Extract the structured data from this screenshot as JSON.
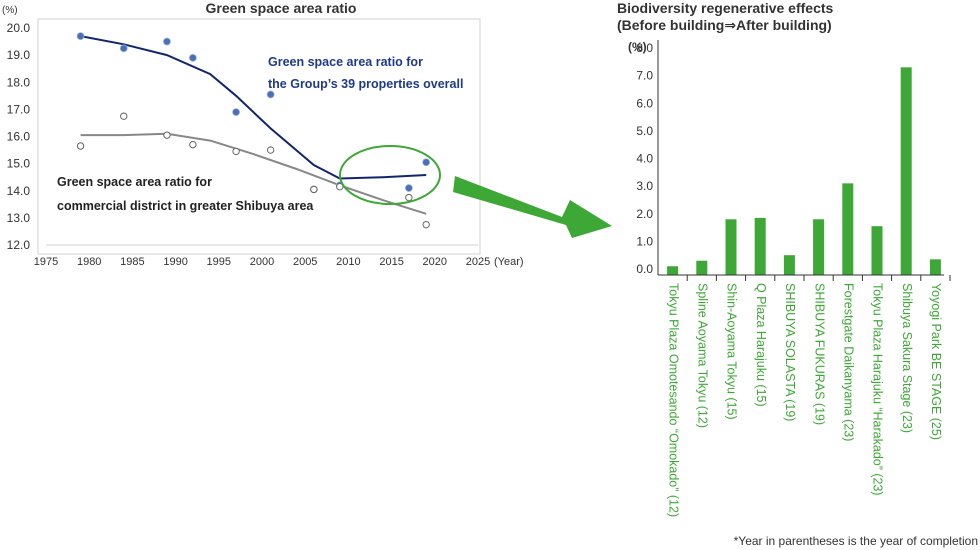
{
  "chart_data": [
    {
      "type": "scatter",
      "title": "Green space area ratio",
      "ylabel": "(%)",
      "xlabel": "(Year)",
      "xlim": [
        1975,
        2025
      ],
      "ylim": [
        12.0,
        20.0
      ],
      "x_ticks": [
        "1975",
        "1980",
        "1985",
        "1990",
        "1995",
        "2000",
        "2005",
        "2010",
        "2015",
        "2020",
        "2025"
      ],
      "y_ticks": [
        "20.0",
        "19.0",
        "18.0",
        "17.0",
        "16.0",
        "15.0",
        "14.0",
        "13.0",
        "12.0"
      ],
      "grid": false,
      "series": [
        {
          "name": "Green space area ratio for the Group’s 39 properties overall",
          "label_lines": [
            "Green space area ratio for",
            "the Group’s 39 properties overall"
          ],
          "marker": "filled",
          "color": "#4a6fb5",
          "line_color": "#12266e",
          "points": [
            [
              1979,
              19.7
            ],
            [
              1984,
              19.25
            ],
            [
              1989,
              19.5
            ],
            [
              1992,
              18.9
            ],
            [
              1997,
              16.9
            ],
            [
              2001,
              17.55
            ],
            [
              2006,
              14.05
            ],
            [
              2009,
              14.2
            ],
            [
              2017,
              14.1
            ],
            [
              2019,
              15.05
            ]
          ],
          "trend": [
            [
              1979,
              19.7
            ],
            [
              1984,
              19.4
            ],
            [
              1989,
              19.0
            ],
            [
              1994,
              18.3
            ],
            [
              1997,
              17.5
            ],
            [
              2001,
              16.3
            ],
            [
              2006,
              14.95
            ],
            [
              2009,
              14.45
            ],
            [
              2014,
              14.5
            ],
            [
              2019,
              14.58
            ]
          ]
        },
        {
          "name": "Green space area ratio for commercial district in greater Shibuya area",
          "label_lines": [
            "Green space area ratio for",
            "commercial district in greater Shibuya area"
          ],
          "marker": "open",
          "color": "#666666",
          "line_color": "#888888",
          "points": [
            [
              1979,
              15.65
            ],
            [
              1984,
              16.75
            ],
            [
              1989,
              16.05
            ],
            [
              1992,
              15.7
            ],
            [
              1997,
              15.45
            ],
            [
              2001,
              15.5
            ],
            [
              2006,
              14.05
            ],
            [
              2009,
              14.15
            ],
            [
              2017,
              13.75
            ],
            [
              2019,
              12.75
            ]
          ],
          "trend": [
            [
              1979,
              16.05
            ],
            [
              1984,
              16.05
            ],
            [
              1989,
              16.1
            ],
            [
              1994,
              15.85
            ],
            [
              1999,
              15.35
            ],
            [
              2004,
              14.8
            ],
            [
              2009,
              14.2
            ],
            [
              2014,
              13.65
            ],
            [
              2019,
              13.15
            ]
          ]
        }
      ]
    },
    {
      "type": "bar",
      "title_lines": [
        "Biodiversity regenerative effects",
        "(Before building⇒After building)"
      ],
      "ylabel": "(%)",
      "ylim": [
        0,
        8.0
      ],
      "y_ticks": [
        "8.0",
        "7.0",
        "6.0",
        "5.0",
        "4.0",
        "3.0",
        "2.0",
        "1.0",
        "0.0"
      ],
      "color": "#3ea836",
      "label_color": "#3ea836",
      "categories": [
        "Tokyu Plaza Omotesando “Omokado” (12)",
        "Spline Aoyama Tokyu (12)",
        "Shin-Aoyama Tokyu (15)",
        "Q Plaza Harajuku (15)",
        "SHIBUYA SOLASTA (19)",
        "SHIBUYA FUKURAS (19)",
        "Forestgate Daikanyama (23)",
        "Tokyu Plaza Harajuku “Harakado” (23)",
        "Shibuya Sakura Stage (23)",
        "Yoyogi Park BE STAGE (25)"
      ],
      "values": [
        0.1,
        0.3,
        1.8,
        1.85,
        0.5,
        1.8,
        3.1,
        1.55,
        7.3,
        0.35
      ],
      "footnote": "*Year in parentheses is the year of completion"
    }
  ],
  "colors": {
    "arrow": "#3ea836",
    "highlight_ellipse": "#3ea836"
  }
}
